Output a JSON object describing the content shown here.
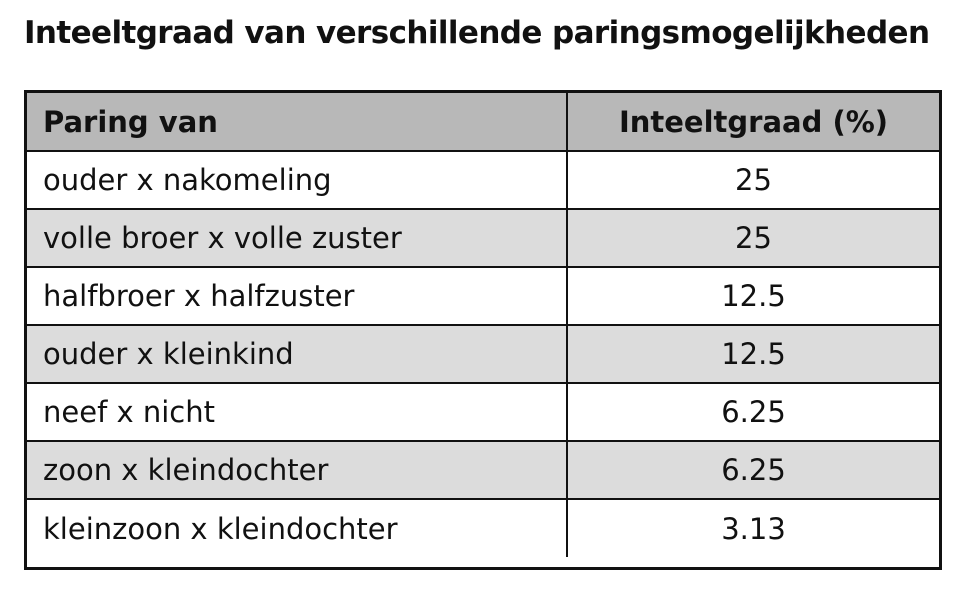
{
  "title": "Inteeltgraad van verschillende paringsmogelijkheden",
  "table": {
    "headers": [
      "Paring van",
      "Inteeltgraad (%)"
    ],
    "rows": [
      {
        "paring": "ouder x nakomeling",
        "graad": "25"
      },
      {
        "paring": "volle broer x volle zuster",
        "graad": "25"
      },
      {
        "paring": "halfbroer x halfzuster",
        "graad": "12.5"
      },
      {
        "paring": "ouder x kleinkind",
        "graad": "12.5"
      },
      {
        "paring": "neef x nicht",
        "graad": "6.25"
      },
      {
        "paring": "zoon x kleindochter",
        "graad": "6.25"
      },
      {
        "paring": "kleinzoon x kleindochter",
        "graad": "3.13"
      }
    ]
  },
  "colors": {
    "header_background": "#b8b8b8",
    "alternate_row_background": "#dcdcdc",
    "row_background": "#ffffff",
    "border": "#111111"
  }
}
